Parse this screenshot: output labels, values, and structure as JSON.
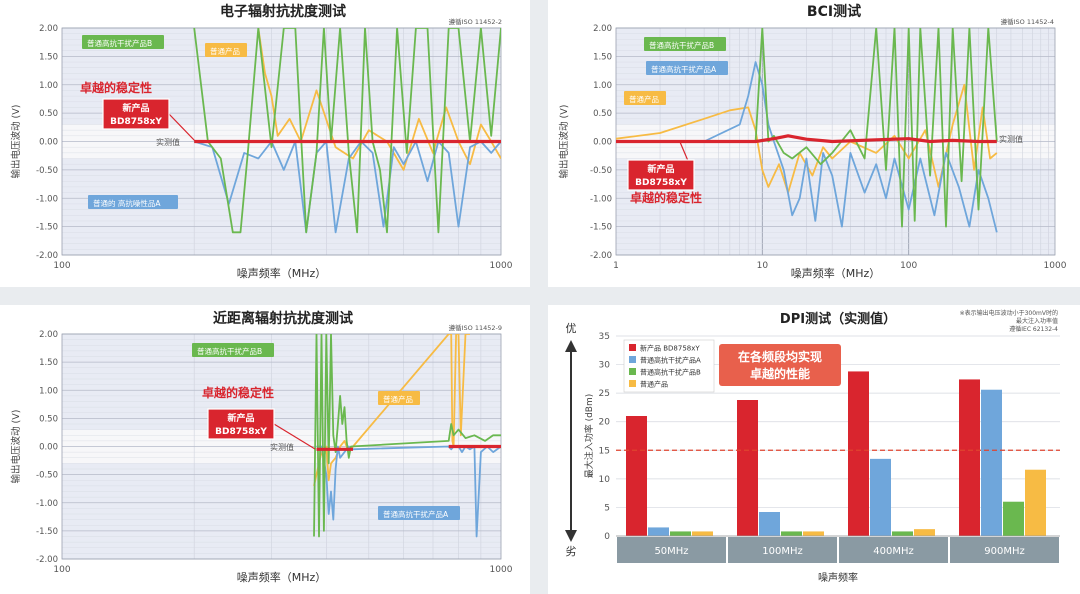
{
  "colors": {
    "new_product": "#d9252e",
    "high_a": "#6fa6db",
    "high_b": "#6ab84f",
    "normal": "#f7bb44",
    "plot_bg": "#e8ebf4",
    "band": "#f7f7f9",
    "axis_text": "#555555",
    "gray_band": "#8a9aa3"
  },
  "chart_data": [
    {
      "type": "line",
      "title": "电子辐射抗扰度测试",
      "note": "遵循ISO 11452-2",
      "xlabel": "噪声频率（MHz）",
      "ylabel": "输出电压波动 (V)",
      "xscale": "log",
      "xlim": [
        100,
        1000
      ],
      "xticks": [
        "100",
        "1000"
      ],
      "ylim": [
        -2,
        2
      ],
      "yticks": [
        "2.00",
        "1.50",
        "1.00",
        "0.50",
        "0.00",
        "-0.50",
        "-1.00",
        "-1.50",
        "-2.00"
      ],
      "grid": true,
      "annotations": {
        "stability": "卓越的稳定性",
        "product_line1": "新产品",
        "product_line2": "BD8758xY",
        "measured": "实测值"
      },
      "series": [
        {
          "name": "新产品 BD8758xY",
          "label": "",
          "key": "new_product",
          "x": [
            200,
            1000
          ],
          "y": [
            0,
            0
          ]
        },
        {
          "name": "普通高抗干扰产品B",
          "label": "普通高抗干扰产品B",
          "key": "high_b",
          "x": [
            200,
            215,
            230,
            245,
            255,
            265,
            280,
            300,
            320,
            340,
            360,
            380,
            395,
            410,
            430,
            450,
            470,
            490,
            510,
            530,
            550,
            580,
            610,
            640,
            680,
            720,
            760,
            800,
            850,
            900,
            950,
            1000
          ],
          "y": [
            2,
            0,
            -0.3,
            -1.6,
            -1.6,
            -0.2,
            2,
            -0.1,
            2,
            2,
            -1.6,
            -0.2,
            2,
            0,
            2,
            -0.2,
            -1.6,
            2,
            0,
            -0.5,
            -1.6,
            2,
            -0.2,
            2,
            2,
            -1.6,
            2,
            2,
            0,
            2,
            0.1,
            2
          ]
        },
        {
          "name": "普通的 高抗噪性品A",
          "label": "普通的 高抗噪性品A",
          "key": "high_a",
          "x": [
            200,
            220,
            240,
            260,
            280,
            300,
            320,
            340,
            360,
            380,
            400,
            420,
            450,
            480,
            510,
            540,
            570,
            600,
            640,
            680,
            720,
            760,
            800,
            850,
            900,
            950,
            1000
          ],
          "y": [
            0,
            -0.1,
            -1.1,
            -0.2,
            -0.3,
            0,
            -0.5,
            0,
            -1.6,
            -0.2,
            0,
            -1.6,
            -0.3,
            0,
            -0.2,
            -1.5,
            -0.1,
            -0.4,
            0,
            -0.7,
            0,
            -0.2,
            -1.5,
            -0.1,
            0,
            -0.2,
            0
          ]
        },
        {
          "name": "普通产品",
          "label": "普通产品",
          "key": "normal",
          "x": [
            280,
            290,
            300,
            310,
            330,
            350,
            380,
            420,
            460,
            500,
            550,
            600,
            650,
            700,
            750,
            800,
            850,
            900,
            950,
            1000
          ],
          "y": [
            2,
            1.2,
            0.8,
            0.1,
            0.4,
            0,
            0.9,
            -0.1,
            -0.3,
            0.2,
            0,
            -0.5,
            0.4,
            -0.2,
            0.6,
            0,
            -0.4,
            0.3,
            0,
            -0.3
          ]
        }
      ]
    },
    {
      "type": "line",
      "title": "BCI测试",
      "note": "遵循ISO 11452-4",
      "xlabel": "噪声频率（MHz）",
      "ylabel": "输出电压波动 (V)",
      "xscale": "log",
      "xlim": [
        1,
        1000
      ],
      "xticks": [
        "1",
        "10",
        "100",
        "1000"
      ],
      "ylim": [
        -2,
        2
      ],
      "yticks": [
        "2.00",
        "1.50",
        "1.00",
        "0.50",
        "0.00",
        "-0.50",
        "-1.00",
        "-1.50",
        "-2.00"
      ],
      "grid": true,
      "annotations": {
        "stability": "卓越的稳定性",
        "product_line1": "新产品",
        "product_line2": "BD8758xY",
        "measured": "实测值"
      },
      "series": [
        {
          "name": "新产品 BD8758xY",
          "label": "",
          "key": "new_product",
          "x": [
            1,
            5,
            9,
            12,
            15,
            20,
            30,
            60,
            100,
            140,
            200,
            300,
            400
          ],
          "y": [
            0,
            0,
            0,
            0.05,
            0.1,
            0.04,
            0,
            0.03,
            0.05,
            0,
            0.02,
            0,
            0
          ]
        },
        {
          "name": "普通高抗干扰产品A",
          "label": "普通高抗干扰产品A",
          "key": "high_a",
          "x": [
            1,
            4,
            7,
            8,
            9,
            10,
            11,
            12,
            14,
            16,
            18,
            20,
            23,
            26,
            30,
            35,
            40,
            50,
            60,
            70,
            80,
            100,
            120,
            150,
            180,
            220,
            260,
            300,
            350,
            400
          ],
          "y": [
            0,
            0,
            0.3,
            0.8,
            1.4,
            1.0,
            0.3,
            0,
            -0.5,
            -1.3,
            -1.0,
            -0.3,
            -1.4,
            -0.2,
            -0.6,
            -1.5,
            -0.2,
            -0.9,
            -0.4,
            -1.0,
            -0.3,
            -1.2,
            -0.3,
            -1.3,
            -0.2,
            -0.8,
            -1.5,
            -0.5,
            -1.0,
            -1.6
          ]
        },
        {
          "name": "普通高抗干扰产品B",
          "label": "普通高抗干扰产品B",
          "key": "high_b",
          "x": [
            1,
            8,
            9,
            10,
            11,
            12,
            14,
            16,
            20,
            25,
            30,
            40,
            50,
            60,
            70,
            80,
            90,
            100,
            110,
            120,
            140,
            160,
            180,
            200,
            230,
            260,
            300,
            350,
            400
          ],
          "y": [
            0,
            0,
            0,
            2,
            0,
            0.1,
            -0.2,
            -0.3,
            -0.1,
            -0.4,
            -0.2,
            0.2,
            -0.3,
            2,
            -0.5,
            2,
            -1.5,
            2,
            -1.4,
            2,
            -0.6,
            2,
            -1.5,
            2,
            -0.7,
            2,
            -1.2,
            2,
            0
          ]
        },
        {
          "name": "普通产品",
          "label": "普通产品",
          "key": "normal",
          "x": [
            1,
            2,
            4,
            6,
            8,
            9,
            10,
            11,
            13,
            15,
            18,
            22,
            26,
            30,
            40,
            60,
            80,
            100,
            130,
            160,
            200,
            240,
            280,
            320,
            360,
            400
          ],
          "y": [
            0.05,
            0.15,
            0.4,
            0.55,
            0.6,
            0.2,
            -0.5,
            -0.8,
            -0.4,
            -0.9,
            -0.2,
            -0.6,
            -0.1,
            -0.3,
            0,
            -0.2,
            0.1,
            -0.3,
            0.2,
            -0.8,
            0.3,
            1.0,
            -0.5,
            0.6,
            -0.3,
            -0.2
          ]
        }
      ]
    },
    {
      "type": "line",
      "title": "近距离辐射抗扰度测试",
      "note": "遵循ISO 11452-9",
      "xlabel": "噪声频率（MHz）",
      "ylabel": "输出电压波动 (V)",
      "xscale": "log",
      "xlim": [
        100,
        1000
      ],
      "xticks": [
        "100",
        "1000"
      ],
      "ylim": [
        -2,
        2
      ],
      "yticks": [
        "2.00",
        "1.50",
        "1.00",
        "0.50",
        "0.00",
        "-0.50",
        "-1.00",
        "-1.50",
        "-2.00"
      ],
      "grid": true,
      "annotations": {
        "stability": "卓越的稳定性",
        "product_line1": "新产品",
        "product_line2": "BD8758xY",
        "measured": "实测值"
      },
      "series": [
        {
          "name": "新产品 BD8758xY (段1)",
          "label": "",
          "key": "new_product",
          "x": [
            380,
            460
          ],
          "y": [
            -0.05,
            -0.05
          ]
        },
        {
          "name": "新产品 BD8758xY (段2)",
          "label": "",
          "key": "new_product",
          "x": [
            760,
            1000
          ],
          "y": [
            0,
            0
          ]
        },
        {
          "name": "普通高抗干扰产品B",
          "label": "普通高抗干扰产品B",
          "key": "high_b",
          "x": [
            375,
            380,
            385,
            390,
            395,
            400,
            405,
            410,
            415,
            420,
            425,
            430,
            435,
            440,
            445,
            450,
            455,
            760,
            770,
            780,
            800,
            830,
            870,
            920,
            960,
            1000
          ],
          "y": [
            -1.6,
            2,
            -1.6,
            2,
            -1.5,
            2,
            -0.3,
            2,
            0.2,
            -0.1,
            0.4,
            0.9,
            0.4,
            0.7,
            0.1,
            -0.2,
            0,
            0.1,
            0.4,
            0.2,
            0.3,
            0.15,
            0.2,
            0.1,
            0.2,
            0.2
          ]
        },
        {
          "name": "普通高抗干扰产品A",
          "label": "普通高抗干扰产品A",
          "key": "high_a",
          "x": [
            380,
            390,
            400,
            405,
            410,
            415,
            420,
            425,
            430,
            440,
            450,
            455,
            760,
            770,
            780,
            790,
            800,
            815,
            830,
            850,
            870,
            880,
            900,
            930,
            960,
            1000
          ],
          "y": [
            0,
            0,
            -0.5,
            -1.2,
            -0.8,
            -1.3,
            -0.4,
            0,
            -0.2,
            -0.1,
            0,
            -0.05,
            0,
            -0.05,
            0,
            0,
            0,
            -0.1,
            0,
            -0.05,
            0,
            -1.6,
            -0.1,
            0,
            -0.1,
            0
          ]
        },
        {
          "name": "普通产品",
          "label": "普通产品",
          "key": "normal",
          "x": [
            375,
            380,
            385,
            390,
            395,
            400,
            405,
            410,
            420,
            430,
            440,
            450,
            460,
            760,
            770,
            775,
            780,
            790,
            800,
            810,
            830,
            850
          ],
          "y": [
            -0.7,
            -0.5,
            -0.3,
            -0.1,
            -0.2,
            0,
            -0.6,
            -0.3,
            -0.2,
            0,
            0.1,
            -0.1,
            0,
            2,
            2,
            0.1,
            0,
            2,
            2,
            0.2,
            2,
            2
          ]
        }
      ]
    },
    {
      "type": "bar",
      "title": "DPI测试（实测值）",
      "note_lines": [
        "※表示输出电压波动小于300mV时的",
        "最大注入功率值",
        "遵循IEC 62132-4"
      ],
      "xlabel": "噪声频率",
      "ylabel": "最大注入功率 (dBm)",
      "ylim": [
        0,
        35
      ],
      "yticks": [
        "0",
        "5",
        "10",
        "15",
        "20",
        "25",
        "30",
        "35"
      ],
      "categories": [
        "50MHz",
        "100MHz",
        "400MHz",
        "900MHz"
      ],
      "reference_line": 15,
      "better_label": "优",
      "worse_label": "劣",
      "callout": [
        "在各频段均实现",
        "卓越的性能"
      ],
      "legend_position": "top-left",
      "series": [
        {
          "name": "新产品 BD8758xY",
          "key": "new_product",
          "values": [
            21,
            23.8,
            28.8,
            27.4
          ]
        },
        {
          "name": "普通高抗干扰产品A",
          "key": "high_a",
          "values": [
            1.5,
            4.2,
            13.5,
            25.6
          ]
        },
        {
          "name": "普通高抗干扰产品B",
          "key": "high_b",
          "values": [
            0.8,
            0.8,
            0.8,
            6.0
          ]
        },
        {
          "name": "普通产品",
          "key": "normal",
          "values": [
            0.8,
            0.8,
            1.2,
            11.6
          ]
        }
      ]
    }
  ]
}
